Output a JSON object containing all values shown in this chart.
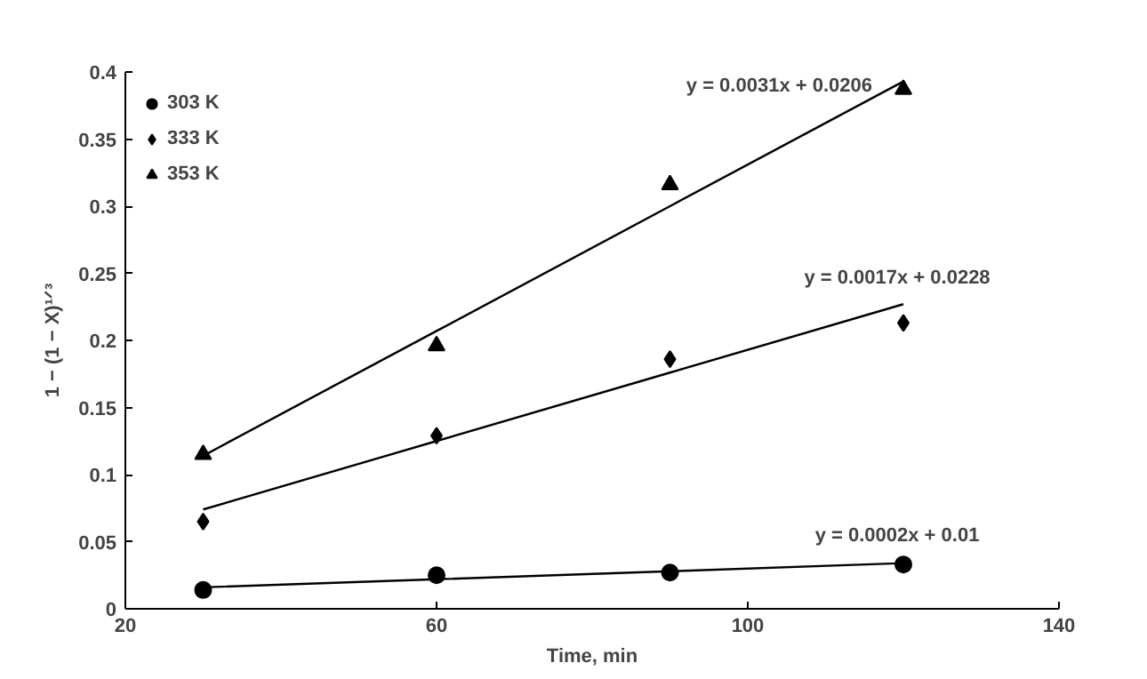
{
  "chart_data": {
    "type": "scatter",
    "xlabel": "Time, min",
    "ylabel": "1 − (1 − X)¹ᐟ³",
    "x": [
      30,
      60,
      90,
      120
    ],
    "xlim": [
      20,
      140
    ],
    "xticks": [
      20,
      60,
      100,
      140
    ],
    "ylim": [
      0,
      0.4
    ],
    "yticks": [
      0,
      0.05,
      0.1,
      0.15,
      0.2,
      0.25,
      0.3,
      0.35,
      0.4
    ],
    "grid": false,
    "legend": "top left",
    "series": [
      {
        "name": "303 K",
        "color": "#000000",
        "marker": "circle",
        "values": [
          0.014,
          0.025,
          0.027,
          0.033
        ]
      },
      {
        "name": "333 K",
        "color": "#000000",
        "marker": "diamond",
        "values": [
          0.065,
          0.129,
          0.186,
          0.213
        ]
      },
      {
        "name": "353 K",
        "color": "#000000",
        "marker": "triangle",
        "values": [
          0.115,
          0.196,
          0.316,
          0.387
        ]
      },
      {
        "type": "line",
        "color": "#000000",
        "values": [
          0.016,
          0.022,
          0.028,
          0.034
        ]
      },
      {
        "type": "line",
        "color": "#000000",
        "values": [
          0.074,
          0.125,
          0.176,
          0.227
        ]
      },
      {
        "type": "line",
        "color": "#000000",
        "values": [
          0.114,
          0.207,
          0.3,
          0.393
        ]
      }
    ],
    "annotations": [
      "y = 0.0031x + 0.0206",
      "y = 0.0017x + 0.0228",
      "y = 0.0002x + 0.01"
    ]
  }
}
